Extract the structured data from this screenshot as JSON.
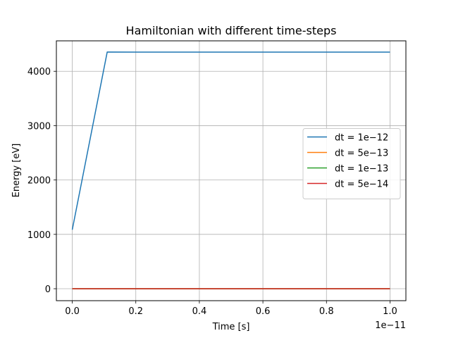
{
  "chart_data": {
    "type": "line",
    "title": "Hamiltonian with different time-steps",
    "xlabel": "Time [s]",
    "ylabel": "Energy [eV]",
    "x_offset_text": "1e−11",
    "xlim": [
      -0.05,
      1.05
    ],
    "ylim": [
      -220,
      4560
    ],
    "xticks": [
      0.0,
      0.2,
      0.4,
      0.6,
      0.8,
      1.0
    ],
    "xtick_labels": [
      "0.0",
      "0.2",
      "0.4",
      "0.6",
      "0.8",
      "1.0"
    ],
    "yticks": [
      0,
      1000,
      2000,
      3000,
      4000
    ],
    "ytick_labels": [
      "0",
      "1000",
      "2000",
      "3000",
      "4000"
    ],
    "grid": true,
    "legend_position": "center-right",
    "series": [
      {
        "name": "dt = 1e−12",
        "color": "#1f77b4",
        "x": [
          0.0,
          0.11,
          0.2,
          0.3,
          0.4,
          0.5,
          0.6,
          0.7,
          0.8,
          0.9,
          1.0
        ],
        "y": [
          1085,
          4355,
          4352,
          4352,
          4352,
          4352,
          4352,
          4352,
          4352,
          4352,
          4352
        ]
      },
      {
        "name": "dt = 5e−13",
        "color": "#ff7f0e",
        "x": [
          0.0,
          1.0
        ],
        "y": [
          0,
          0
        ]
      },
      {
        "name": "dt = 1e−13",
        "color": "#2ca02c",
        "x": [
          0.0,
          1.0
        ],
        "y": [
          0,
          0
        ]
      },
      {
        "name": "dt = 5e−14",
        "color": "#d62728",
        "x": [
          0.0,
          1.0
        ],
        "y": [
          0,
          0
        ]
      }
    ]
  }
}
